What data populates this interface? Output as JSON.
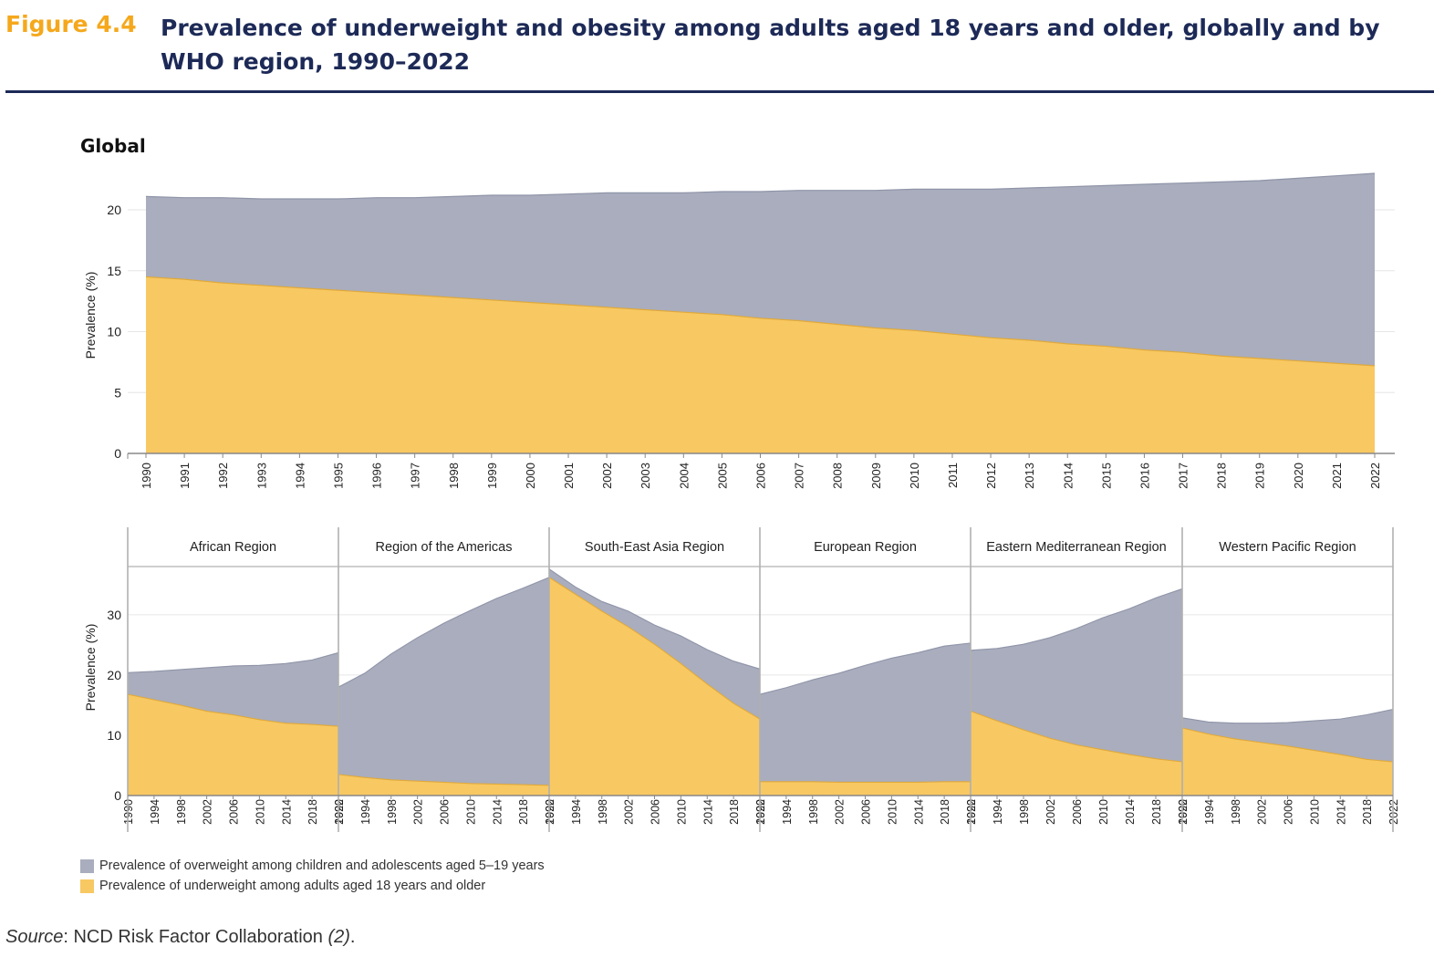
{
  "figure": {
    "label": "Figure 4.4",
    "title": "Prevalence of underweight and obesity among adults aged 18 years and older, globally and by WHO region, 1990–2022"
  },
  "source": {
    "label": "Source",
    "text": ": NCD Risk Factor Collaboration ",
    "ref": "(2)",
    "end": "."
  },
  "colors": {
    "overweight": "#a9adbd",
    "underweight": "#f8c862",
    "title": "#1d2a57",
    "label": "#f5a81c"
  },
  "legend": [
    {
      "label": "Prevalence of overweight among children and adolescents aged 5–19 years",
      "color": "#a9adbd"
    },
    {
      "label": "Prevalence of underweight among adults aged 18 years and older",
      "color": "#f8c862"
    }
  ],
  "chart_data": [
    {
      "type": "area",
      "title": "Global",
      "ylabel": "Prevalence (%)",
      "ylim": [
        0,
        23
      ],
      "yticks": [
        0,
        5,
        10,
        15,
        20
      ],
      "grid": true,
      "x": [
        1990,
        1991,
        1992,
        1993,
        1994,
        1995,
        1996,
        1997,
        1998,
        1999,
        2000,
        2001,
        2002,
        2003,
        2004,
        2005,
        2006,
        2007,
        2008,
        2009,
        2010,
        2011,
        2012,
        2013,
        2014,
        2015,
        2016,
        2017,
        2018,
        2019,
        2020,
        2021,
        2022
      ],
      "series": [
        {
          "name": "Prevalence of overweight among children and adolescents aged 5–19 years",
          "stacked_top_values": [
            21.1,
            21.0,
            21.0,
            20.9,
            20.9,
            20.9,
            21.0,
            21.0,
            21.1,
            21.2,
            21.2,
            21.3,
            21.4,
            21.4,
            21.4,
            21.5,
            21.5,
            21.6,
            21.6,
            21.6,
            21.7,
            21.7,
            21.7,
            21.8,
            21.9,
            22.0,
            22.1,
            22.2,
            22.3,
            22.4,
            22.6,
            22.8,
            23.0
          ]
        },
        {
          "name": "Prevalence of underweight among adults aged 18 years and older",
          "values": [
            14.5,
            14.3,
            14.0,
            13.8,
            13.6,
            13.4,
            13.2,
            13.0,
            12.8,
            12.6,
            12.4,
            12.2,
            12.0,
            11.8,
            11.6,
            11.4,
            11.1,
            10.9,
            10.6,
            10.3,
            10.1,
            9.8,
            9.5,
            9.3,
            9.0,
            8.8,
            8.5,
            8.3,
            8.0,
            7.8,
            7.6,
            7.4,
            7.2
          ]
        }
      ]
    },
    {
      "type": "area",
      "ylabel": "Prevalence (%)",
      "ylim": [
        0,
        38
      ],
      "yticks": [
        0,
        10,
        20,
        30
      ],
      "grid": true,
      "xticks": [
        1990,
        1994,
        1998,
        2002,
        2006,
        2010,
        2014,
        2018,
        2022
      ],
      "x": [
        1990,
        1994,
        1998,
        2002,
        2006,
        2010,
        2014,
        2018,
        2022
      ],
      "panels": [
        {
          "title": "African Region",
          "underweight": [
            16.8,
            15.9,
            15.0,
            14.0,
            13.4,
            12.6,
            12.0,
            11.8,
            11.5
          ],
          "top": [
            20.4,
            20.6,
            20.9,
            21.2,
            21.5,
            21.6,
            21.9,
            22.5,
            23.7
          ]
        },
        {
          "title": "Region of the Americas",
          "underweight": [
            3.5,
            3.0,
            2.6,
            2.4,
            2.2,
            2.0,
            1.9,
            1.8,
            1.7
          ],
          "top": [
            18.0,
            20.3,
            23.5,
            26.2,
            28.6,
            30.7,
            32.7,
            34.4,
            36.2
          ]
        },
        {
          "title": "South-East Asia Region",
          "underweight": [
            36.2,
            33.4,
            30.6,
            28.0,
            25.1,
            21.9,
            18.5,
            15.3,
            12.7
          ],
          "top": [
            37.6,
            34.6,
            32.2,
            30.6,
            28.3,
            26.5,
            24.2,
            22.3,
            21.0
          ]
        },
        {
          "title": "European Region",
          "underweight": [
            2.3,
            2.3,
            2.3,
            2.2,
            2.2,
            2.2,
            2.2,
            2.3,
            2.3
          ],
          "top": [
            16.8,
            17.9,
            19.2,
            20.3,
            21.6,
            22.8,
            23.7,
            24.8,
            25.3
          ]
        },
        {
          "title": "Eastern Mediterranean Region",
          "underweight": [
            14.0,
            12.4,
            10.9,
            9.5,
            8.4,
            7.6,
            6.8,
            6.1,
            5.6
          ],
          "top": [
            24.1,
            24.4,
            25.1,
            26.2,
            27.7,
            29.5,
            31.0,
            32.8,
            34.3
          ]
        },
        {
          "title": "Western Pacific Region",
          "underweight": [
            11.2,
            10.2,
            9.4,
            8.8,
            8.2,
            7.5,
            6.8,
            6.0,
            5.6
          ],
          "top": [
            12.9,
            12.2,
            12.0,
            12.0,
            12.1,
            12.4,
            12.7,
            13.4,
            14.3
          ]
        }
      ]
    }
  ]
}
